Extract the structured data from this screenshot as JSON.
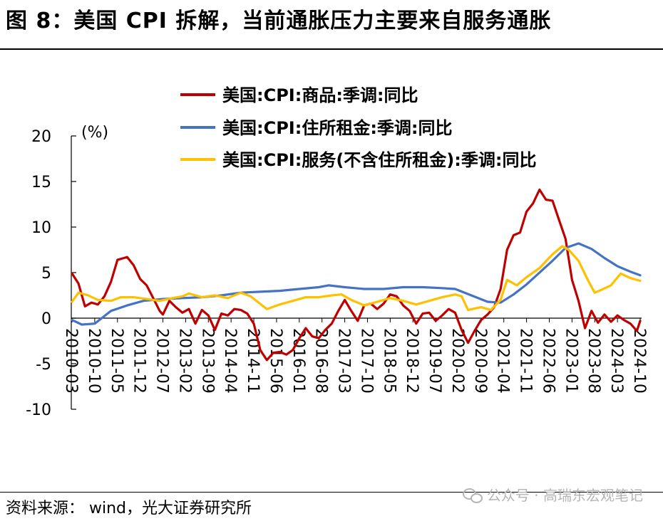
{
  "figure": {
    "title": "图 8：美国 CPI 拆解，当前通胀压力主要来自服务通胀",
    "source": "资料来源： wind，光大证券研究所",
    "watermark": "公众号 · 高瑞东宏观笔记"
  },
  "chart_data": {
    "type": "line",
    "title": "",
    "ylabel": "(%)",
    "xlabel": "",
    "ylim": [
      -10,
      20
    ],
    "yticks": [
      -10,
      -5,
      0,
      5,
      10,
      15,
      20
    ],
    "x_start": "2010-03",
    "x_end": "2024-10",
    "xtick_labels": [
      "2010-03",
      "2010-10",
      "2011-05",
      "2011-12",
      "2012-07",
      "2013-02",
      "2013-09",
      "2014-04",
      "2014-11",
      "2015-06",
      "2016-01",
      "2016-08",
      "2017-03",
      "2017-10",
      "2018-05",
      "2018-12",
      "2019-07",
      "2020-02",
      "2020-09",
      "2021-04",
      "2021-11",
      "2022-06",
      "2023-01",
      "2023-08",
      "2024-03",
      "2024-10"
    ],
    "grid": false,
    "legend_position": "top-center",
    "series": [
      {
        "name": "美国:CPI:商品:季调:同比",
        "color": "#C00000",
        "points": [
          [
            "2010-03",
            4.9
          ],
          [
            "2010-05",
            3.8
          ],
          [
            "2010-07",
            1.3
          ],
          [
            "2010-09",
            1.7
          ],
          [
            "2010-11",
            1.5
          ],
          [
            "2011-01",
            2.4
          ],
          [
            "2011-03",
            4.0
          ],
          [
            "2011-05",
            6.4
          ],
          [
            "2011-07",
            6.6
          ],
          [
            "2011-08",
            6.7
          ],
          [
            "2011-10",
            5.8
          ],
          [
            "2011-12",
            4.3
          ],
          [
            "2012-02",
            3.6
          ],
          [
            "2012-04",
            2.2
          ],
          [
            "2012-06",
            0.8
          ],
          [
            "2012-07",
            0.4
          ],
          [
            "2012-09",
            1.9
          ],
          [
            "2012-11",
            1.2
          ],
          [
            "2013-01",
            0.6
          ],
          [
            "2013-03",
            1.0
          ],
          [
            "2013-05",
            -0.6
          ],
          [
            "2013-07",
            0.9
          ],
          [
            "2013-09",
            0.3
          ],
          [
            "2013-11",
            -1.3
          ],
          [
            "2014-01",
            0.5
          ],
          [
            "2014-03",
            0.3
          ],
          [
            "2014-05",
            1.0
          ],
          [
            "2014-07",
            0.9
          ],
          [
            "2014-09",
            0.5
          ],
          [
            "2014-11",
            -0.6
          ],
          [
            "2015-01",
            -3.5
          ],
          [
            "2015-03",
            -4.6
          ],
          [
            "2015-05",
            -3.8
          ],
          [
            "2015-07",
            -3.7
          ],
          [
            "2015-09",
            -4.0
          ],
          [
            "2015-11",
            -3.5
          ],
          [
            "2016-01",
            -2.2
          ],
          [
            "2016-03",
            -1.1
          ],
          [
            "2016-05",
            -2.0
          ],
          [
            "2016-07",
            -2.2
          ],
          [
            "2016-09",
            -1.3
          ],
          [
            "2016-11",
            -0.6
          ],
          [
            "2017-01",
            0.8
          ],
          [
            "2017-03",
            2.0
          ],
          [
            "2017-05",
            0.8
          ],
          [
            "2017-07",
            -0.3
          ],
          [
            "2017-09",
            1.4
          ],
          [
            "2017-11",
            1.6
          ],
          [
            "2018-01",
            1.0
          ],
          [
            "2018-03",
            1.6
          ],
          [
            "2018-05",
            2.6
          ],
          [
            "2018-07",
            2.4
          ],
          [
            "2018-09",
            1.4
          ],
          [
            "2018-11",
            0.8
          ],
          [
            "2019-01",
            -0.6
          ],
          [
            "2019-03",
            0.5
          ],
          [
            "2019-05",
            0.6
          ],
          [
            "2019-07",
            -0.3
          ],
          [
            "2019-09",
            0.3
          ],
          [
            "2019-11",
            1.0
          ],
          [
            "2020-01",
            0.6
          ],
          [
            "2020-03",
            -1.3
          ],
          [
            "2020-05",
            -2.7
          ],
          [
            "2020-07",
            -1.4
          ],
          [
            "2020-09",
            -0.2
          ],
          [
            "2020-11",
            0.4
          ],
          [
            "2021-01",
            1.2
          ],
          [
            "2021-03",
            3.2
          ],
          [
            "2021-05",
            7.5
          ],
          [
            "2021-07",
            9.1
          ],
          [
            "2021-09",
            9.4
          ],
          [
            "2021-11",
            11.7
          ],
          [
            "2022-01",
            12.6
          ],
          [
            "2022-03",
            14.1
          ],
          [
            "2022-05",
            13.0
          ],
          [
            "2022-07",
            12.9
          ],
          [
            "2022-09",
            10.8
          ],
          [
            "2022-11",
            8.7
          ],
          [
            "2023-01",
            4.2
          ],
          [
            "2023-03",
            1.9
          ],
          [
            "2023-05",
            -1.1
          ],
          [
            "2023-07",
            0.8
          ],
          [
            "2023-09",
            -0.5
          ],
          [
            "2023-11",
            0.4
          ],
          [
            "2024-01",
            -0.4
          ],
          [
            "2024-03",
            0.3
          ],
          [
            "2024-05",
            -0.2
          ],
          [
            "2024-07",
            -0.6
          ],
          [
            "2024-09",
            -1.4
          ],
          [
            "2024-10",
            -0.3
          ]
        ]
      },
      {
        "name": "美国:CPI:住所租金:季调:同比",
        "color": "#4472C4",
        "points": [
          [
            "2010-03",
            -0.2
          ],
          [
            "2010-06",
            -0.7
          ],
          [
            "2010-10",
            -0.6
          ],
          [
            "2011-03",
            0.8
          ],
          [
            "2011-08",
            1.4
          ],
          [
            "2012-01",
            1.9
          ],
          [
            "2012-07",
            2.1
          ],
          [
            "2013-01",
            2.2
          ],
          [
            "2013-07",
            2.3
          ],
          [
            "2014-01",
            2.5
          ],
          [
            "2014-07",
            2.8
          ],
          [
            "2015-01",
            2.9
          ],
          [
            "2015-07",
            3.0
          ],
          [
            "2016-01",
            3.2
          ],
          [
            "2016-07",
            3.4
          ],
          [
            "2016-10",
            3.6
          ],
          [
            "2017-03",
            3.4
          ],
          [
            "2017-09",
            3.2
          ],
          [
            "2018-03",
            3.2
          ],
          [
            "2018-09",
            3.4
          ],
          [
            "2019-03",
            3.4
          ],
          [
            "2019-09",
            3.3
          ],
          [
            "2020-01",
            3.2
          ],
          [
            "2020-06",
            2.5
          ],
          [
            "2020-11",
            1.8
          ],
          [
            "2021-03",
            1.7
          ],
          [
            "2021-07",
            2.6
          ],
          [
            "2021-11",
            3.7
          ],
          [
            "2022-03",
            5.0
          ],
          [
            "2022-07",
            6.3
          ],
          [
            "2022-11",
            7.7
          ],
          [
            "2023-03",
            8.2
          ],
          [
            "2023-07",
            7.6
          ],
          [
            "2023-11",
            6.6
          ],
          [
            "2024-03",
            5.7
          ],
          [
            "2024-07",
            5.1
          ],
          [
            "2024-10",
            4.7
          ]
        ]
      },
      {
        "name": "美国:CPI:服务(不含住所租金):季调:同比",
        "color": "#FFC000",
        "points": [
          [
            "2010-03",
            1.8
          ],
          [
            "2010-05",
            2.8
          ],
          [
            "2010-08",
            2.5
          ],
          [
            "2010-11",
            2.0
          ],
          [
            "2011-03",
            1.9
          ],
          [
            "2011-06",
            2.3
          ],
          [
            "2011-10",
            2.3
          ],
          [
            "2012-02",
            2.1
          ],
          [
            "2012-06",
            1.9
          ],
          [
            "2012-10",
            2.2
          ],
          [
            "2013-01",
            2.4
          ],
          [
            "2013-03",
            2.7
          ],
          [
            "2013-07",
            2.3
          ],
          [
            "2013-11",
            2.5
          ],
          [
            "2014-03",
            2.2
          ],
          [
            "2014-07",
            2.8
          ],
          [
            "2014-10",
            2.4
          ],
          [
            "2015-03",
            1.0
          ],
          [
            "2015-07",
            1.5
          ],
          [
            "2015-11",
            1.9
          ],
          [
            "2016-03",
            2.3
          ],
          [
            "2016-07",
            2.3
          ],
          [
            "2016-11",
            2.5
          ],
          [
            "2017-02",
            2.6
          ],
          [
            "2017-05",
            2.0
          ],
          [
            "2017-09",
            1.4
          ],
          [
            "2018-01",
            1.8
          ],
          [
            "2018-05",
            2.2
          ],
          [
            "2018-09",
            1.9
          ],
          [
            "2019-01",
            1.5
          ],
          [
            "2019-05",
            1.9
          ],
          [
            "2019-09",
            2.3
          ],
          [
            "2020-01",
            2.6
          ],
          [
            "2020-03",
            2.4
          ],
          [
            "2020-05",
            0.9
          ],
          [
            "2020-09",
            1.2
          ],
          [
            "2020-12",
            0.9
          ],
          [
            "2021-03",
            2.0
          ],
          [
            "2021-05",
            4.2
          ],
          [
            "2021-08",
            3.6
          ],
          [
            "2021-11",
            4.5
          ],
          [
            "2022-03",
            5.5
          ],
          [
            "2022-07",
            7.0
          ],
          [
            "2022-10",
            7.9
          ],
          [
            "2022-12",
            7.5
          ],
          [
            "2023-03",
            6.3
          ],
          [
            "2023-06",
            4.1
          ],
          [
            "2023-08",
            2.8
          ],
          [
            "2023-10",
            3.1
          ],
          [
            "2024-01",
            3.6
          ],
          [
            "2024-04",
            4.9
          ],
          [
            "2024-07",
            4.4
          ],
          [
            "2024-10",
            4.1
          ]
        ]
      }
    ]
  }
}
